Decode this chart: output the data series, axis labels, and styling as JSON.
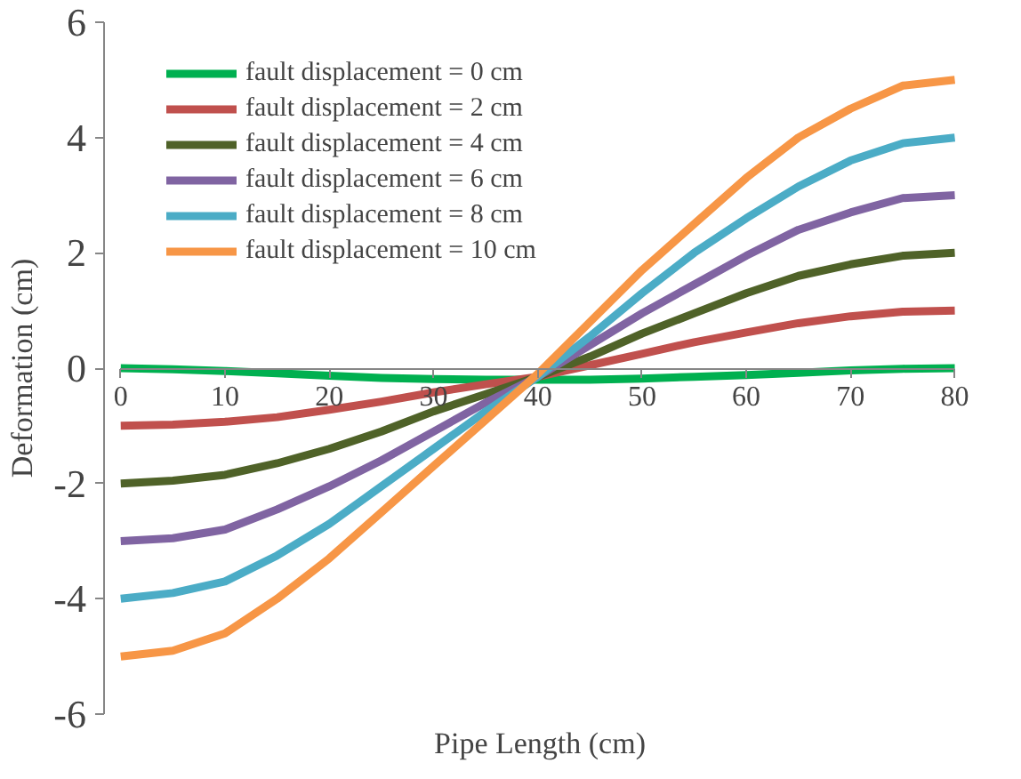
{
  "chart_data": {
    "type": "line",
    "xlabel": "Pipe Length (cm)",
    "ylabel": "Deformation (cm)",
    "x": [
      0,
      5,
      10,
      15,
      20,
      25,
      30,
      35,
      40,
      45,
      50,
      55,
      60,
      65,
      70,
      75,
      80
    ],
    "xlim": [
      0,
      80
    ],
    "xticks": [
      0,
      10,
      20,
      30,
      40,
      50,
      60,
      70,
      80
    ],
    "ylim": [
      -6,
      6
    ],
    "yticks": [
      -6,
      -4,
      -2,
      0,
      2,
      4,
      6
    ],
    "grid": false,
    "legend": "top left",
    "marker": "none",
    "line_style": "solid",
    "series": [
      {
        "name": "fault displacement = 0 cm",
        "color": "#00b050",
        "values": [
          0,
          -0.02,
          -0.05,
          -0.09,
          -0.13,
          -0.17,
          -0.19,
          -0.2,
          -0.2,
          -0.2,
          -0.18,
          -0.15,
          -0.12,
          -0.08,
          -0.04,
          -0.01,
          0
        ]
      },
      {
        "name": "fault displacement = 2 cm",
        "color": "#c0504d",
        "values": [
          -1,
          -0.98,
          -0.93,
          -0.85,
          -0.72,
          -0.58,
          -0.42,
          -0.28,
          -0.15,
          0.05,
          0.25,
          0.45,
          0.62,
          0.78,
          0.9,
          0.98,
          1.0
        ]
      },
      {
        "name": "fault displacement = 4 cm",
        "color": "#4f6228",
        "values": [
          -2,
          -1.95,
          -1.85,
          -1.65,
          -1.4,
          -1.1,
          -0.75,
          -0.45,
          -0.15,
          0.2,
          0.6,
          0.95,
          1.3,
          1.6,
          1.8,
          1.95,
          2.0
        ]
      },
      {
        "name": "fault displacement = 6 cm",
        "color": "#8064a2",
        "values": [
          -3,
          -2.95,
          -2.8,
          -2.45,
          -2.05,
          -1.6,
          -1.1,
          -0.6,
          -0.15,
          0.4,
          0.95,
          1.45,
          1.95,
          2.4,
          2.7,
          2.95,
          3.0
        ]
      },
      {
        "name": "fault displacement = 8 cm",
        "color": "#4bacc6",
        "values": [
          -4,
          -3.9,
          -3.7,
          -3.25,
          -2.7,
          -2.05,
          -1.4,
          -0.75,
          -0.15,
          0.55,
          1.3,
          2.0,
          2.6,
          3.15,
          3.6,
          3.9,
          4.0
        ]
      },
      {
        "name": "fault displacement = 10 cm",
        "color": "#f79646",
        "values": [
          -5,
          -4.9,
          -4.6,
          -4.0,
          -3.3,
          -2.5,
          -1.7,
          -0.9,
          -0.1,
          0.8,
          1.7,
          2.5,
          3.3,
          4.0,
          4.5,
          4.9,
          5.0
        ]
      }
    ]
  }
}
